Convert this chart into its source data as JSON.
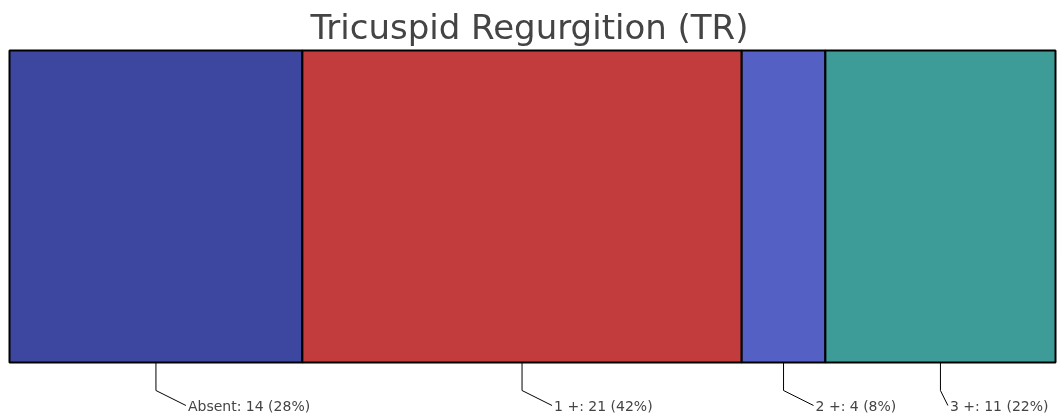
{
  "chart_data": {
    "type": "bar",
    "title": "Tricuspid Regurgition (TR)",
    "orientation": "horizontal",
    "stacked": true,
    "categories": [
      null
    ],
    "series": [
      {
        "color": "#3d47a0",
        "values": [
          14
        ],
        "value_labels": [
          "Absent: 14 (28%)"
        ]
      },
      {
        "color": "#c23c3e",
        "values": [
          21
        ],
        "value_labels": [
          "1 +: 21 (42%)"
        ]
      },
      {
        "color": "#5560c4",
        "values": [
          4
        ],
        "value_labels": [
          "2 +: 4 (8%)"
        ]
      },
      {
        "color": "#3e9c98",
        "values": [
          11
        ],
        "value_labels": [
          "3 +: 11 (22%)"
        ]
      }
    ]
  }
}
